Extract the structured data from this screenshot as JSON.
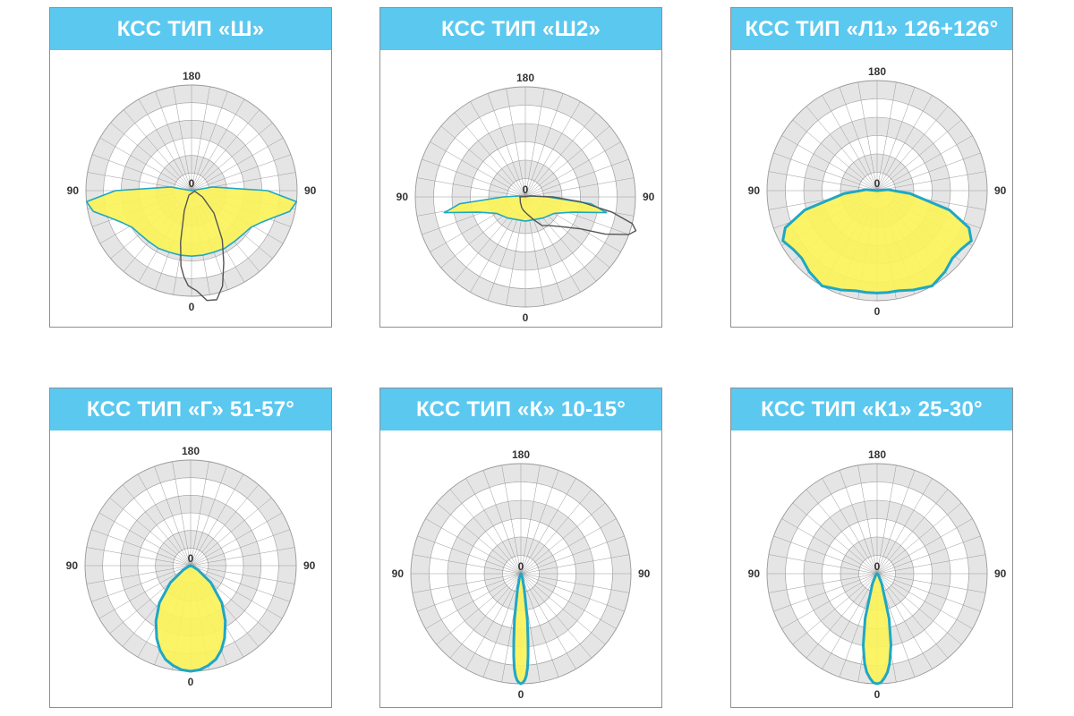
{
  "colors": {
    "header_bg": "#5bc8f0",
    "title_text": "#ffffff",
    "ring_gray": "#e5e5e5",
    "grid_line": "#9a9a9a",
    "fill_yellow": "#fbf35a",
    "outline_blue": "#1fa7c5",
    "secondary_curve": "#555555"
  },
  "chart_data": [
    {
      "type": "polar",
      "title": "КСС ТИП «Ш»",
      "tick_labels": {
        "top": "180",
        "left": "90",
        "right": "90",
        "center": "0",
        "bottom": "0"
      },
      "fill_curve": [
        [
          -180,
          0.0
        ],
        [
          -150,
          0.0
        ],
        [
          -120,
          0.0
        ],
        [
          -100,
          0.2
        ],
        [
          -90,
          0.72
        ],
        [
          -84,
          1.0
        ],
        [
          -78,
          0.95
        ],
        [
          -72,
          0.82
        ],
        [
          -65,
          0.72
        ],
        [
          -58,
          0.66
        ],
        [
          -50,
          0.64
        ],
        [
          -40,
          0.63
        ],
        [
          -30,
          0.63
        ],
        [
          -20,
          0.62
        ],
        [
          -10,
          0.62
        ],
        [
          0,
          0.62
        ],
        [
          10,
          0.62
        ],
        [
          20,
          0.62
        ],
        [
          30,
          0.63
        ],
        [
          40,
          0.63
        ],
        [
          50,
          0.64
        ],
        [
          58,
          0.66
        ],
        [
          65,
          0.72
        ],
        [
          72,
          0.82
        ],
        [
          78,
          0.95
        ],
        [
          84,
          1.0
        ],
        [
          90,
          0.72
        ],
        [
          100,
          0.2
        ],
        [
          120,
          0.0
        ],
        [
          150,
          0.0
        ],
        [
          180,
          0.0
        ]
      ],
      "secondary_curve": [
        [
          -30,
          0.05
        ],
        [
          -20,
          0.2
        ],
        [
          -12,
          0.5
        ],
        [
          -8,
          0.72
        ],
        [
          -5,
          0.82
        ],
        [
          -2,
          0.9
        ],
        [
          0,
          0.92
        ],
        [
          3,
          0.95
        ],
        [
          8,
          1.05
        ],
        [
          13,
          1.06
        ],
        [
          18,
          0.95
        ],
        [
          24,
          0.75
        ],
        [
          32,
          0.55
        ],
        [
          45,
          0.3
        ],
        [
          60,
          0.12
        ],
        [
          80,
          0.03
        ]
      ]
    },
    {
      "type": "polar",
      "title": "КСС ТИП «Ш2»",
      "tick_labels": {
        "top": "180",
        "left": "90",
        "right": "90",
        "center": "0",
        "bottom": "0"
      },
      "fill_curve": [
        [
          -180,
          0.0
        ],
        [
          -120,
          0.0
        ],
        [
          -100,
          0.05
        ],
        [
          -90,
          0.2
        ],
        [
          -84,
          0.6
        ],
        [
          -79,
          0.75
        ],
        [
          -72,
          0.45
        ],
        [
          -60,
          0.3
        ],
        [
          -40,
          0.25
        ],
        [
          -20,
          0.22
        ],
        [
          0,
          0.22
        ],
        [
          20,
          0.22
        ],
        [
          40,
          0.25
        ],
        [
          60,
          0.3
        ],
        [
          72,
          0.45
        ],
        [
          79,
          0.75
        ],
        [
          84,
          0.6
        ],
        [
          90,
          0.2
        ],
        [
          100,
          0.05
        ],
        [
          120,
          0.0
        ],
        [
          180,
          0.0
        ]
      ],
      "secondary_curve": [
        [
          -90,
          0.05
        ],
        [
          -70,
          0.05
        ],
        [
          -50,
          0.06
        ],
        [
          -40,
          0.07
        ],
        [
          -30,
          0.08
        ],
        [
          -20,
          0.1
        ],
        [
          -10,
          0.12
        ],
        [
          0,
          0.14
        ],
        [
          10,
          0.17
        ],
        [
          20,
          0.22
        ],
        [
          30,
          0.3
        ],
        [
          40,
          0.34
        ],
        [
          50,
          0.42
        ],
        [
          60,
          0.58
        ],
        [
          65,
          0.8
        ],
        [
          70,
          1.0
        ],
        [
          73,
          1.05
        ],
        [
          76,
          1.0
        ],
        [
          80,
          0.8
        ],
        [
          85,
          0.5
        ],
        [
          90,
          0.25
        ],
        [
          100,
          0.05
        ]
      ]
    },
    {
      "type": "polar",
      "title": "КСС ТИП «Л1» 126+126°",
      "tick_labels": {
        "top": "180",
        "left": "90",
        "right": "90",
        "center": "0",
        "bottom": "0"
      },
      "fill_curve": [
        [
          -180,
          0.0
        ],
        [
          -120,
          0.0
        ],
        [
          -95,
          0.1
        ],
        [
          -85,
          0.3
        ],
        [
          -75,
          0.68
        ],
        [
          -68,
          0.9
        ],
        [
          -62,
          0.97
        ],
        [
          -55,
          0.93
        ],
        [
          -48,
          0.92
        ],
        [
          -40,
          0.96
        ],
        [
          -30,
          1.0
        ],
        [
          -20,
          0.96
        ],
        [
          -12,
          0.93
        ],
        [
          -6,
          0.93
        ],
        [
          0,
          0.93
        ],
        [
          6,
          0.93
        ],
        [
          12,
          0.93
        ],
        [
          20,
          0.96
        ],
        [
          30,
          1.0
        ],
        [
          40,
          0.96
        ],
        [
          48,
          0.92
        ],
        [
          55,
          0.93
        ],
        [
          62,
          0.97
        ],
        [
          68,
          0.9
        ],
        [
          75,
          0.68
        ],
        [
          85,
          0.3
        ],
        [
          95,
          0.1
        ],
        [
          120,
          0.0
        ],
        [
          180,
          0.0
        ]
      ]
    },
    {
      "type": "polar",
      "title": "КСС ТИП «Г» 51-57°",
      "tick_labels": {
        "top": "180",
        "left": "90",
        "right": "90",
        "center": "0",
        "bottom": "0"
      },
      "fill_curve": [
        [
          -90,
          0.0
        ],
        [
          -70,
          0.02
        ],
        [
          -60,
          0.08
        ],
        [
          -50,
          0.25
        ],
        [
          -40,
          0.46
        ],
        [
          -32,
          0.62
        ],
        [
          -25,
          0.76
        ],
        [
          -20,
          0.85
        ],
        [
          -15,
          0.92
        ],
        [
          -10,
          0.96
        ],
        [
          -5,
          0.99
        ],
        [
          0,
          1.0
        ],
        [
          5,
          0.99
        ],
        [
          10,
          0.96
        ],
        [
          15,
          0.92
        ],
        [
          20,
          0.85
        ],
        [
          25,
          0.76
        ],
        [
          32,
          0.62
        ],
        [
          40,
          0.46
        ],
        [
          50,
          0.25
        ],
        [
          60,
          0.08
        ],
        [
          70,
          0.02
        ],
        [
          90,
          0.0
        ]
      ]
    },
    {
      "type": "polar",
      "title": "КСС ТИП «К» 10-15°",
      "tick_labels": {
        "top": "180",
        "left": "90",
        "right": "90",
        "center": "0",
        "bottom": "0"
      },
      "fill_curve": [
        [
          -90,
          0.0
        ],
        [
          -40,
          0.0
        ],
        [
          -20,
          0.04
        ],
        [
          -12,
          0.15
        ],
        [
          -8,
          0.42
        ],
        [
          -6,
          0.62
        ],
        [
          -5,
          0.75
        ],
        [
          -4,
          0.86
        ],
        [
          -3,
          0.93
        ],
        [
          -2,
          0.97
        ],
        [
          -1,
          0.99
        ],
        [
          0,
          1.0
        ],
        [
          1,
          0.99
        ],
        [
          2,
          0.97
        ],
        [
          3,
          0.93
        ],
        [
          4,
          0.86
        ],
        [
          5,
          0.75
        ],
        [
          6,
          0.62
        ],
        [
          8,
          0.42
        ],
        [
          12,
          0.15
        ],
        [
          20,
          0.04
        ],
        [
          40,
          0.0
        ],
        [
          90,
          0.0
        ]
      ]
    },
    {
      "type": "polar",
      "title": "КСС ТИП «К1» 25-30°",
      "tick_labels": {
        "top": "180",
        "left": "90",
        "right": "90",
        "center": "0",
        "bottom": "0"
      },
      "fill_curve": [
        [
          -90,
          0.0
        ],
        [
          -40,
          0.02
        ],
        [
          -25,
          0.1
        ],
        [
          -15,
          0.42
        ],
        [
          -11,
          0.66
        ],
        [
          -8,
          0.82
        ],
        [
          -6,
          0.9
        ],
        [
          -4,
          0.95
        ],
        [
          -2,
          0.99
        ],
        [
          0,
          1.0
        ],
        [
          2,
          0.99
        ],
        [
          4,
          0.95
        ],
        [
          6,
          0.9
        ],
        [
          8,
          0.82
        ],
        [
          11,
          0.66
        ],
        [
          15,
          0.42
        ],
        [
          25,
          0.1
        ],
        [
          40,
          0.02
        ],
        [
          90,
          0.0
        ]
      ]
    }
  ]
}
